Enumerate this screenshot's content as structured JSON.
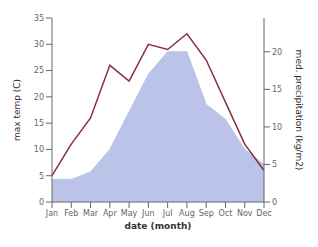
{
  "chart_data": {
    "type": "line",
    "categories": [
      "Jan",
      "Feb",
      "Mar",
      "Apr",
      "May",
      "Jun",
      "Jul",
      "Aug",
      "Sep",
      "Oct",
      "Nov",
      "Dec"
    ],
    "series": [
      {
        "type": "area",
        "axis": "y2",
        "color": "#bbc3e8",
        "values": [
          3,
          3,
          4,
          7,
          12,
          17,
          20,
          20,
          13,
          11,
          7,
          5
        ]
      },
      {
        "type": "line",
        "color": "#8B2E3F",
        "values": [
          5,
          11,
          16,
          26,
          23,
          30,
          29,
          32,
          27,
          19,
          11,
          6
        ]
      }
    ],
    "xlabel": "date (month)",
    "ylabel": "max temp (C)",
    "y2label": "med. precipitation (kg/m2)",
    "ylim": [
      0,
      35
    ],
    "yticks": [
      0,
      5,
      10,
      15,
      20,
      25,
      30,
      35
    ],
    "y2lim": [
      0,
      24.5
    ],
    "y2ticks": [
      0,
      5,
      10,
      15,
      20
    ]
  }
}
